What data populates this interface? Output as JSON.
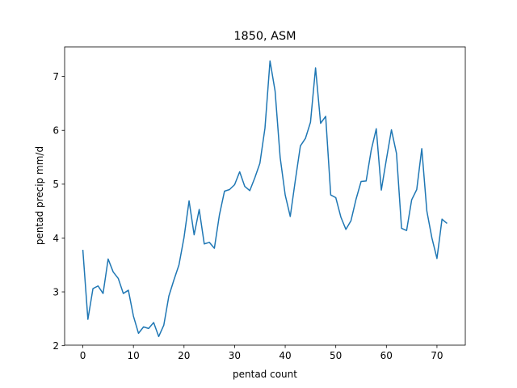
{
  "chart_data": {
    "type": "line",
    "title": "1850, ASM",
    "xlabel": "pentad count",
    "ylabel": "pentad precip mm/d",
    "xlim": [
      -3.6,
      75.6
    ],
    "ylim": [
      2.01,
      7.55
    ],
    "xticks": [
      0,
      10,
      20,
      30,
      40,
      50,
      60,
      70
    ],
    "yticks": [
      2,
      3,
      4,
      5,
      6,
      7
    ],
    "grid": false,
    "legend": "none",
    "series": [
      {
        "color": "#1f77b4",
        "x": [
          0,
          1,
          2,
          3,
          4,
          5,
          6,
          7,
          8,
          9,
          10,
          11,
          12,
          13,
          14,
          15,
          16,
          17,
          18,
          19,
          20,
          21,
          22,
          23,
          24,
          25,
          26,
          27,
          28,
          29,
          30,
          31,
          32,
          33,
          34,
          35,
          36,
          37,
          38,
          39,
          40,
          41,
          42,
          43,
          44,
          45,
          46,
          47,
          48,
          49,
          50,
          51,
          52,
          53,
          54,
          55,
          56,
          57,
          58,
          59,
          60,
          61,
          62,
          63,
          64,
          65,
          66,
          67,
          68,
          69,
          70,
          71,
          72
        ],
        "values": [
          3.78,
          2.49,
          3.06,
          3.11,
          2.97,
          3.61,
          3.37,
          3.25,
          2.97,
          3.03,
          2.55,
          2.23,
          2.35,
          2.32,
          2.43,
          2.17,
          2.38,
          2.92,
          3.22,
          3.5,
          4.01,
          4.69,
          4.06,
          4.53,
          3.89,
          3.92,
          3.81,
          4.43,
          4.87,
          4.9,
          4.99,
          5.23,
          4.96,
          4.88,
          5.12,
          5.39,
          6.04,
          7.29,
          6.73,
          5.5,
          4.8,
          4.4,
          5.07,
          5.71,
          5.85,
          6.15,
          7.16,
          6.13,
          6.26,
          4.8,
          4.75,
          4.39,
          4.16,
          4.32,
          4.72,
          5.05,
          5.06,
          5.63,
          6.03,
          4.89,
          5.46,
          6.01,
          5.57,
          4.18,
          4.14,
          4.71,
          4.9,
          5.66,
          4.5,
          4.0,
          3.62,
          4.35,
          4.27
        ]
      }
    ]
  }
}
